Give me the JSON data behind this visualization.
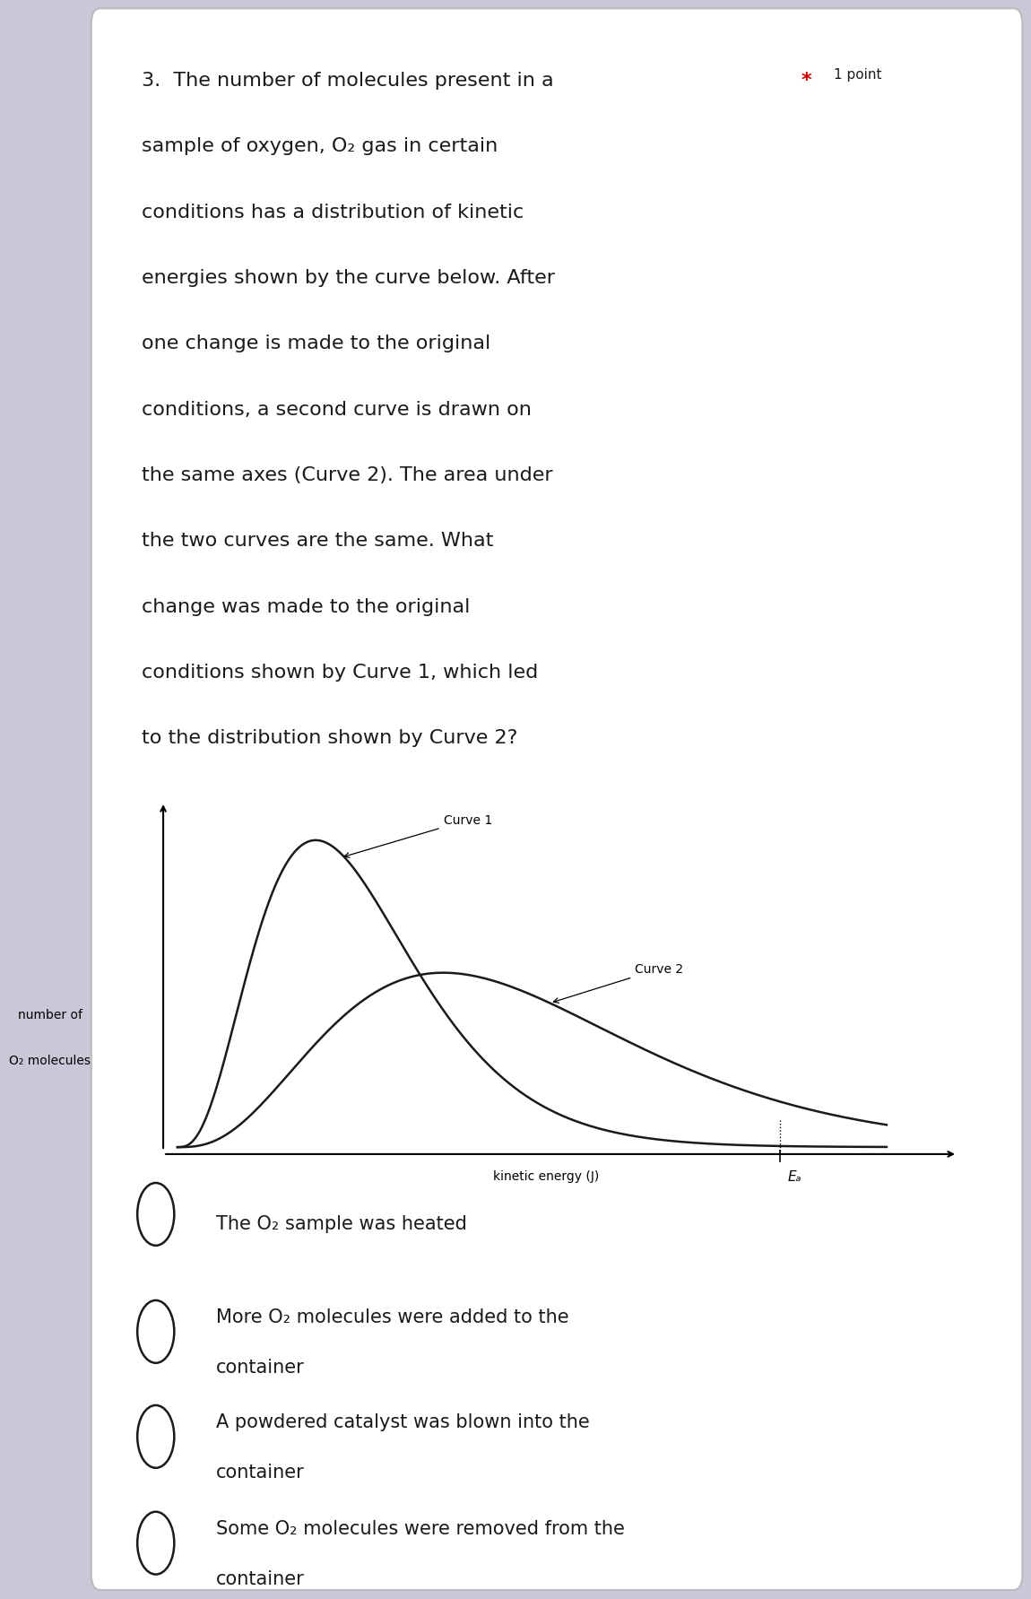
{
  "page_bg": "#c8c8d8",
  "card_bg": "#ffffff",
  "graph_bg": "#b8b8a0",
  "curve_color": "#1a1a1a",
  "text_color": "#1a1a1a",
  "star_color": "#cc0000",
  "curve1_label": "Curve 1",
  "curve2_label": "Curve 2",
  "ylabel_line1": "number of",
  "ylabel_line2": "O₂ molecules",
  "xlabel": "kinetic energy (J)",
  "ea_label": "Eₐ",
  "option_circle_color": "#1a1a1a",
  "q_lines": [
    "3.  The number of molecules present in a",
    "sample of oxygen, O₂ gas in certain",
    "conditions has a distribution of kinetic",
    "energies shown by the curve below. After",
    "one change is made to the original",
    "conditions, a second curve is drawn on",
    "the same axes (Curve 2). The area under",
    "the two curves are the same. What",
    "change was made to the original",
    "conditions shown by Curve 1, which led",
    "to the distribution shown by Curve 2?"
  ],
  "options": [
    [
      "The O₂ sample was heated"
    ],
    [
      "More O₂ molecules were added to the",
      "container"
    ],
    [
      "A powdered catalyst was blown into the",
      "container"
    ],
    [
      "Some O₂ molecules were removed from the",
      "container"
    ]
  ],
  "font_size_q": 16,
  "font_size_opt": 15,
  "font_size_graph": 10
}
